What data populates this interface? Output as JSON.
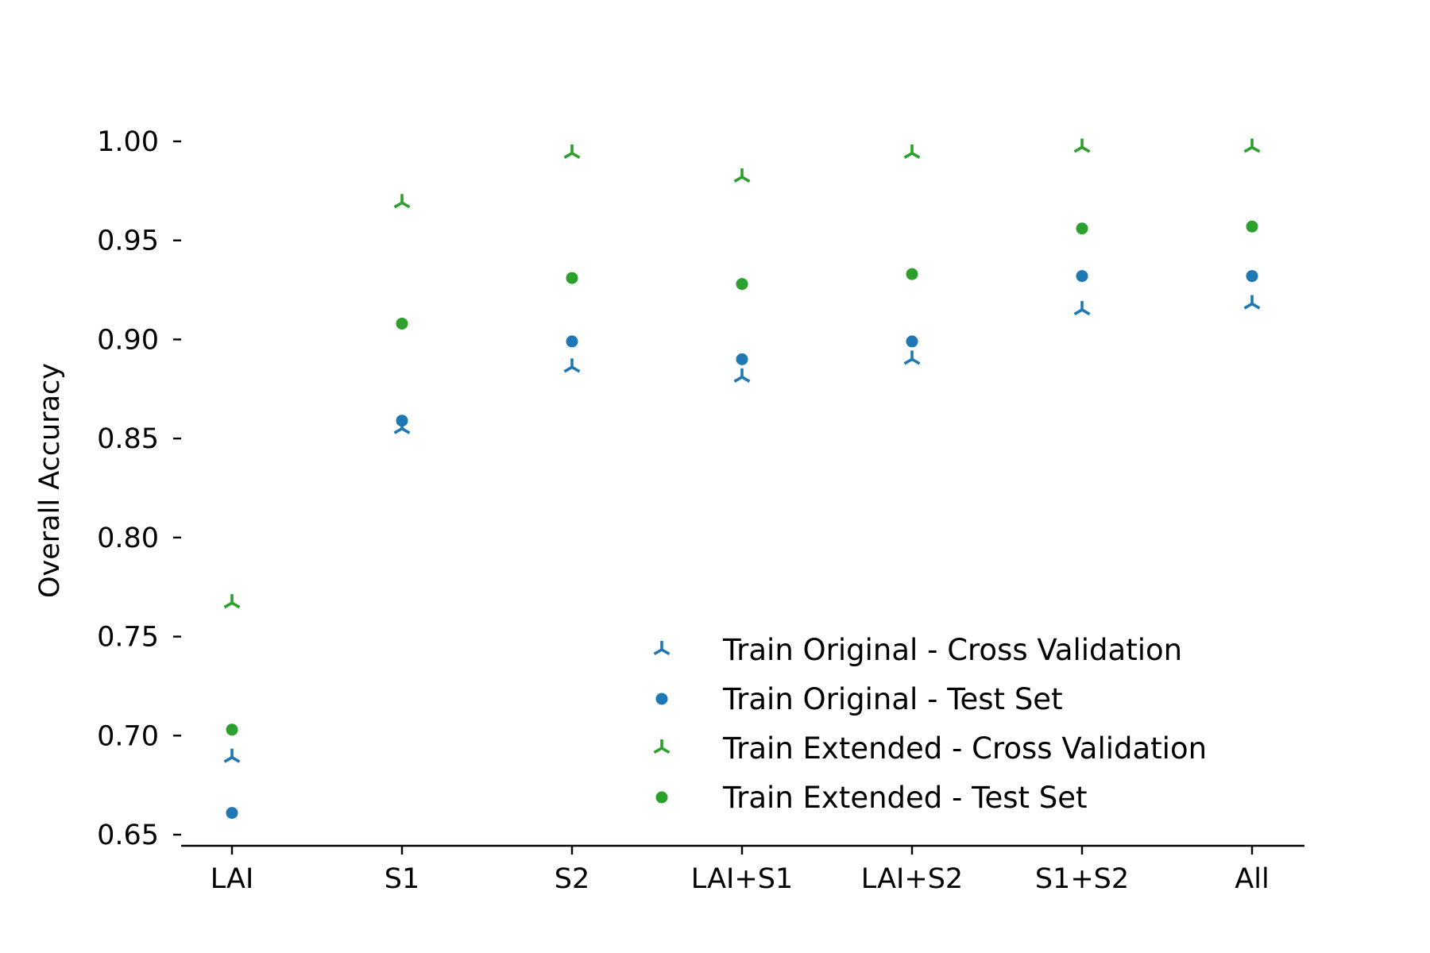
{
  "chart_data": {
    "type": "scatter",
    "categories": [
      "LAI",
      "S1",
      "S2",
      "LAI+S1",
      "LAI+S2",
      "S1+S2",
      "All"
    ],
    "ylabel": "Overall Accuracy",
    "xlabel": "",
    "ylim": [
      0.645,
      1.025
    ],
    "yticks": [
      0.65,
      0.7,
      0.75,
      0.8,
      0.85,
      0.9,
      0.95,
      1.0
    ],
    "ytick_labels": [
      "0.65",
      "0.70",
      "0.75",
      "0.80",
      "0.85",
      "0.90",
      "0.95",
      "1.00"
    ],
    "grid": false,
    "legend_position": "lower-right",
    "series": [
      {
        "name": "Train Original - Cross Validation",
        "marker": "tri-down",
        "color": "#1f77b4",
        "values": [
          0.689,
          0.855,
          0.886,
          0.881,
          0.89,
          0.915,
          0.918
        ]
      },
      {
        "name": "Train Original - Test Set",
        "marker": "circle",
        "color": "#1f77b4",
        "values": [
          0.661,
          0.859,
          0.899,
          0.89,
          0.899,
          0.932,
          0.932
        ]
      },
      {
        "name": "Train Extended - Cross Validation",
        "marker": "tri-down",
        "color": "#2ca02c",
        "values": [
          0.767,
          0.969,
          0.994,
          0.982,
          0.994,
          0.997,
          0.997
        ]
      },
      {
        "name": "Train Extended - Test Set",
        "marker": "circle",
        "color": "#2ca02c",
        "values": [
          0.703,
          0.908,
          0.931,
          0.928,
          0.933,
          0.956,
          0.957
        ]
      }
    ]
  }
}
